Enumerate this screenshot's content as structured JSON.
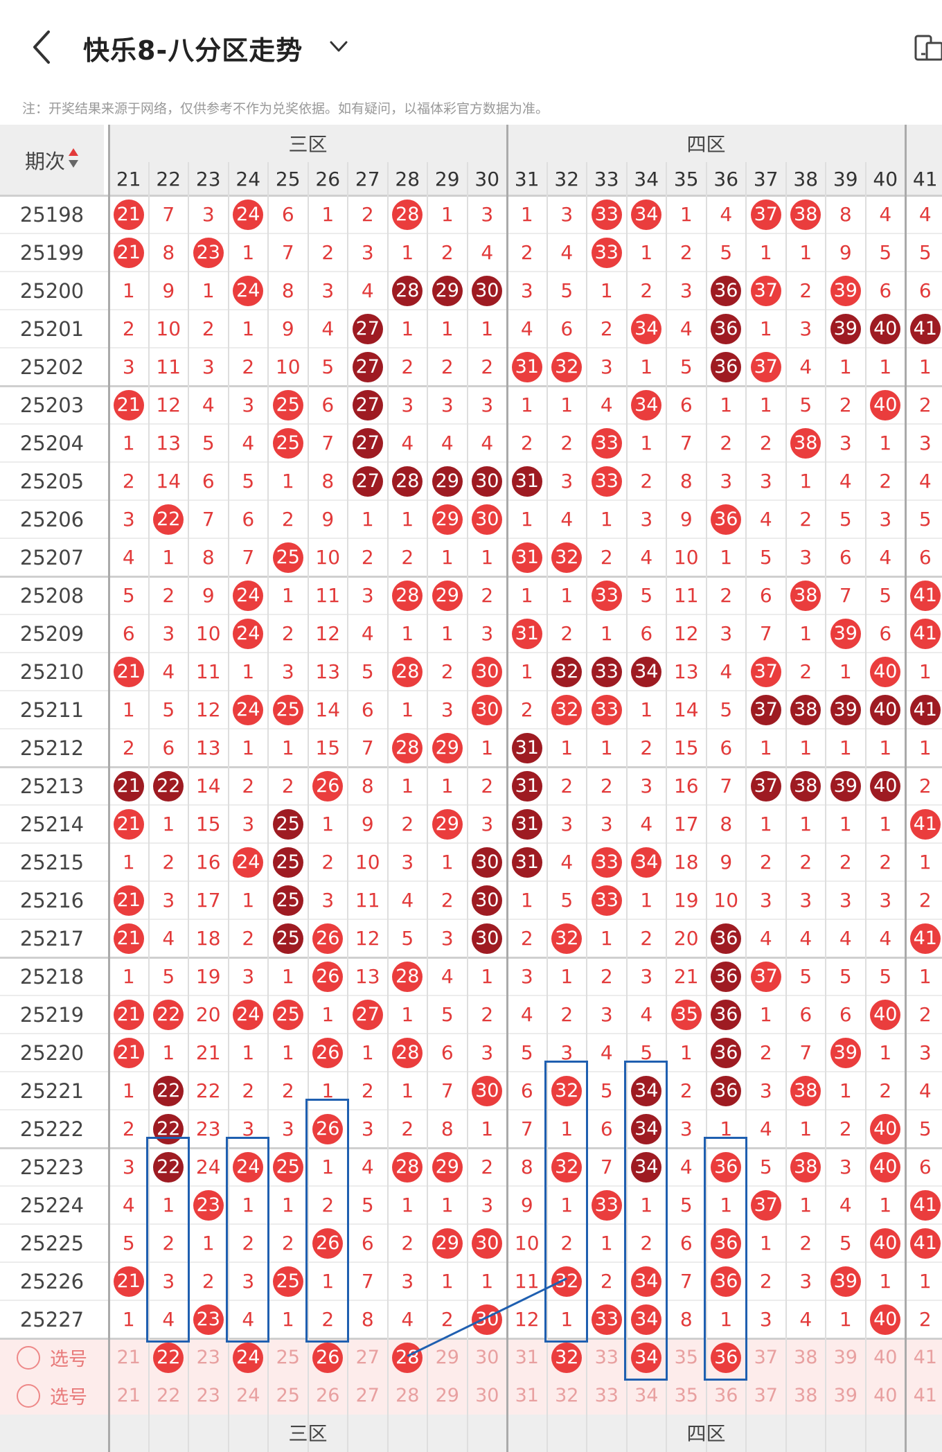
{
  "header": {
    "title": "快乐8-八分区走势",
    "notice": "注：开奖结果来源于网络，仅供参考不作为兑奖依据。如有疑问，以福体彩官方数据为准。"
  },
  "table": {
    "period_header": "期次",
    "zones": [
      "三区",
      "四区"
    ],
    "columns": [
      "21",
      "22",
      "23",
      "24",
      "25",
      "26",
      "27",
      "28",
      "29",
      "30",
      "31",
      "32",
      "33",
      "34",
      "35",
      "36",
      "37",
      "38",
      "39",
      "40",
      "41"
    ],
    "rows": [
      {
        "period": "25198",
        "cells": [
          "21r",
          "7",
          "3",
          "24r",
          "6",
          "1",
          "2",
          "28r",
          "1",
          "3",
          "1",
          "3",
          "33r",
          "34r",
          "1",
          "4",
          "37r",
          "38r",
          "8",
          "4",
          "4"
        ]
      },
      {
        "period": "25199",
        "cells": [
          "21r",
          "8",
          "23r",
          "1",
          "7",
          "2",
          "3",
          "1",
          "2",
          "4",
          "2",
          "4",
          "33r",
          "1",
          "2",
          "5",
          "1",
          "1",
          "9",
          "5",
          "5"
        ]
      },
      {
        "period": "25200",
        "cells": [
          "1",
          "9",
          "1",
          "24r",
          "8",
          "3",
          "4",
          "28d",
          "29d",
          "30d",
          "3",
          "5",
          "1",
          "2",
          "3",
          "36d",
          "37r",
          "2",
          "39r",
          "6",
          "6"
        ]
      },
      {
        "period": "25201",
        "cells": [
          "2",
          "10",
          "2",
          "1",
          "9",
          "4",
          "27d",
          "1",
          "1",
          "1",
          "4",
          "6",
          "2",
          "34r",
          "4",
          "36d",
          "1",
          "3",
          "39d",
          "40d",
          "41d"
        ]
      },
      {
        "period": "25202",
        "cells": [
          "3",
          "11",
          "3",
          "2",
          "10",
          "5",
          "27d",
          "2",
          "2",
          "2",
          "31r",
          "32r",
          "3",
          "1",
          "5",
          "36d",
          "37r",
          "4",
          "1",
          "1",
          "1"
        ]
      },
      {
        "period": "25203",
        "cells": [
          "21r",
          "12",
          "4",
          "3",
          "25r",
          "6",
          "27d",
          "3",
          "3",
          "3",
          "1",
          "1",
          "4",
          "34r",
          "6",
          "1",
          "1",
          "5",
          "2",
          "40r",
          "2"
        ]
      },
      {
        "period": "25204",
        "cells": [
          "1",
          "13",
          "5",
          "4",
          "25r",
          "7",
          "27d",
          "4",
          "4",
          "4",
          "2",
          "2",
          "33r",
          "1",
          "7",
          "2",
          "2",
          "38r",
          "3",
          "1",
          "3"
        ]
      },
      {
        "period": "25205",
        "cells": [
          "2",
          "14",
          "6",
          "5",
          "1",
          "8",
          "27d",
          "28d",
          "29d",
          "30d",
          "31d",
          "3",
          "33r",
          "2",
          "8",
          "3",
          "3",
          "1",
          "4",
          "2",
          "4"
        ]
      },
      {
        "period": "25206",
        "cells": [
          "3",
          "22r",
          "7",
          "6",
          "2",
          "9",
          "1",
          "1",
          "29r",
          "30r",
          "1",
          "4",
          "1",
          "3",
          "9",
          "36r",
          "4",
          "2",
          "5",
          "3",
          "5"
        ]
      },
      {
        "period": "25207",
        "cells": [
          "4",
          "1",
          "8",
          "7",
          "25r",
          "10",
          "2",
          "2",
          "1",
          "1",
          "31r",
          "32r",
          "2",
          "4",
          "10",
          "1",
          "5",
          "3",
          "6",
          "4",
          "6"
        ]
      },
      {
        "period": "25208",
        "cells": [
          "5",
          "2",
          "9",
          "24r",
          "1",
          "11",
          "3",
          "28r",
          "29r",
          "2",
          "1",
          "1",
          "33r",
          "5",
          "11",
          "2",
          "6",
          "38r",
          "7",
          "5",
          "41r"
        ]
      },
      {
        "period": "25209",
        "cells": [
          "6",
          "3",
          "10",
          "24r",
          "2",
          "12",
          "4",
          "1",
          "1",
          "3",
          "31r",
          "2",
          "1",
          "6",
          "12",
          "3",
          "7",
          "1",
          "39r",
          "6",
          "41r"
        ]
      },
      {
        "period": "25210",
        "cells": [
          "21r",
          "4",
          "11",
          "1",
          "3",
          "13",
          "5",
          "28r",
          "2",
          "30r",
          "1",
          "32d",
          "33d",
          "34d",
          "13",
          "4",
          "37r",
          "2",
          "1",
          "40r",
          "1"
        ]
      },
      {
        "period": "25211",
        "cells": [
          "1",
          "5",
          "12",
          "24r",
          "25r",
          "14",
          "6",
          "1",
          "3",
          "30r",
          "2",
          "32r",
          "33r",
          "1",
          "14",
          "5",
          "37d",
          "38d",
          "39d",
          "40d",
          "41d"
        ]
      },
      {
        "period": "25212",
        "cells": [
          "2",
          "6",
          "13",
          "1",
          "1",
          "15",
          "7",
          "28r",
          "29r",
          "1",
          "31d",
          "1",
          "1",
          "2",
          "15",
          "6",
          "1",
          "1",
          "1",
          "1",
          "1"
        ]
      },
      {
        "period": "25213",
        "cells": [
          "21d",
          "22d",
          "14",
          "2",
          "2",
          "26r",
          "8",
          "1",
          "1",
          "2",
          "31d",
          "2",
          "2",
          "3",
          "16",
          "7",
          "37d",
          "38d",
          "39d",
          "40d",
          "2"
        ]
      },
      {
        "period": "25214",
        "cells": [
          "21r",
          "1",
          "15",
          "3",
          "25d",
          "1",
          "9",
          "2",
          "29r",
          "3",
          "31d",
          "3",
          "3",
          "4",
          "17",
          "8",
          "1",
          "1",
          "1",
          "1",
          "41r"
        ]
      },
      {
        "period": "25215",
        "cells": [
          "1",
          "2",
          "16",
          "24r",
          "25d",
          "2",
          "10",
          "3",
          "1",
          "30d",
          "31d",
          "4",
          "33r",
          "34r",
          "18",
          "9",
          "2",
          "2",
          "2",
          "2",
          "1"
        ]
      },
      {
        "period": "25216",
        "cells": [
          "21r",
          "3",
          "17",
          "1",
          "25d",
          "3",
          "11",
          "4",
          "2",
          "30d",
          "1",
          "5",
          "33r",
          "1",
          "19",
          "10",
          "3",
          "3",
          "3",
          "3",
          "2"
        ]
      },
      {
        "period": "25217",
        "cells": [
          "21r",
          "4",
          "18",
          "2",
          "25d",
          "26r",
          "12",
          "5",
          "3",
          "30d",
          "2",
          "32r",
          "1",
          "2",
          "20",
          "36d",
          "4",
          "4",
          "4",
          "4",
          "41r"
        ]
      },
      {
        "period": "25218",
        "cells": [
          "1",
          "5",
          "19",
          "3",
          "1",
          "26r",
          "13",
          "28r",
          "4",
          "1",
          "3",
          "1",
          "2",
          "3",
          "21",
          "36d",
          "37r",
          "5",
          "5",
          "5",
          "1"
        ]
      },
      {
        "period": "25219",
        "cells": [
          "21r",
          "22r",
          "20",
          "24r",
          "25r",
          "1",
          "27r",
          "1",
          "5",
          "2",
          "4",
          "2",
          "3",
          "4",
          "35r",
          "36d",
          "1",
          "6",
          "6",
          "40r",
          "2"
        ]
      },
      {
        "period": "25220",
        "cells": [
          "21r",
          "1",
          "21",
          "1",
          "1",
          "26r",
          "1",
          "28r",
          "6",
          "3",
          "5",
          "3",
          "4",
          "5",
          "1",
          "36d",
          "2",
          "7",
          "39r",
          "1",
          "3"
        ]
      },
      {
        "period": "25221",
        "cells": [
          "1",
          "22d",
          "22",
          "2",
          "2",
          "1",
          "2",
          "1",
          "7",
          "30r",
          "6",
          "32r",
          "5",
          "34d",
          "2",
          "36d",
          "3",
          "38r",
          "1",
          "2",
          "4"
        ]
      },
      {
        "period": "25222",
        "cells": [
          "2",
          "22d",
          "23",
          "3",
          "3",
          "26r",
          "3",
          "2",
          "8",
          "1",
          "7",
          "1",
          "6",
          "34d",
          "3",
          "1",
          "4",
          "1",
          "2",
          "40r",
          "5"
        ]
      },
      {
        "period": "25223",
        "cells": [
          "3",
          "22d",
          "24",
          "24r",
          "25r",
          "1",
          "4",
          "28r",
          "29r",
          "2",
          "8",
          "32r",
          "7",
          "34d",
          "4",
          "36r",
          "5",
          "38r",
          "3",
          "40r",
          "6"
        ]
      },
      {
        "period": "25224",
        "cells": [
          "4",
          "1",
          "23r",
          "1",
          "1",
          "2",
          "5",
          "1",
          "1",
          "3",
          "9",
          "1",
          "33r",
          "1",
          "5",
          "1",
          "37r",
          "1",
          "4",
          "1",
          "41r"
        ]
      },
      {
        "period": "25225",
        "cells": [
          "5",
          "2",
          "1",
          "2",
          "2",
          "26r",
          "6",
          "2",
          "29r",
          "30r",
          "10",
          "2",
          "1",
          "2",
          "6",
          "36r",
          "1",
          "2",
          "5",
          "40r",
          "41r"
        ]
      },
      {
        "period": "25226",
        "cells": [
          "21r",
          "3",
          "2",
          "3",
          "25r",
          "1",
          "7",
          "3",
          "1",
          "1",
          "11",
          "32r",
          "2",
          "34r",
          "7",
          "36r",
          "2",
          "3",
          "39r",
          "1",
          "1"
        ]
      },
      {
        "period": "25227",
        "cells": [
          "1",
          "4",
          "23r",
          "4",
          "1",
          "2",
          "8",
          "4",
          "2",
          "30r",
          "12",
          "1",
          "33r",
          "34r",
          "8",
          "1",
          "3",
          "4",
          "1",
          "40r",
          "2"
        ]
      }
    ],
    "pick_rows": [
      {
        "label": "选号",
        "cells": [
          "21",
          "22r",
          "23",
          "24r",
          "25",
          "26r",
          "27",
          "28r",
          "29",
          "30",
          "31",
          "32r",
          "33",
          "34r",
          "35",
          "36r",
          "37",
          "38",
          "39",
          "40",
          "41"
        ]
      },
      {
        "label": "选号",
        "cells": [
          "21",
          "22",
          "23",
          "24",
          "25",
          "26",
          "27",
          "28",
          "29",
          "30",
          "31",
          "32",
          "33",
          "34",
          "35",
          "36",
          "37",
          "38",
          "39",
          "40",
          "41"
        ]
      }
    ]
  },
  "colors": {
    "ball_red": "#ea3d3d",
    "ball_dark": "#9e1b22",
    "text_red": "#e23a3a",
    "box_blue": "#1f5fb0",
    "header_bg": "#eeeeee",
    "pick_bg": "#fdeceb"
  },
  "icons": [
    "back-chevron-icon",
    "dropdown-chevron-icon",
    "device-icon"
  ]
}
